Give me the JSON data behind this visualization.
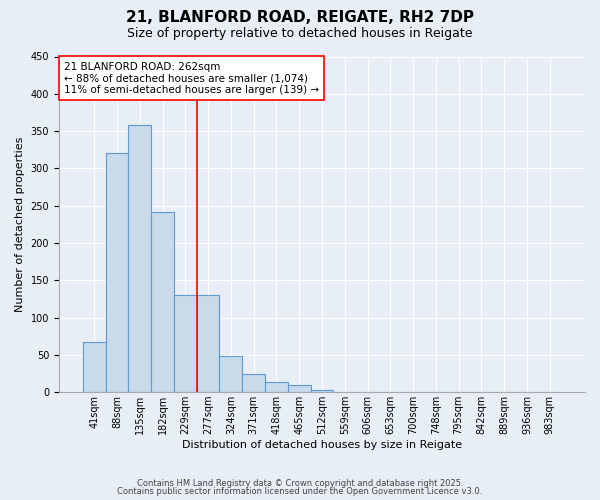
{
  "title": "21, BLANFORD ROAD, REIGATE, RH2 7DP",
  "subtitle": "Size of property relative to detached houses in Reigate",
  "xlabel": "Distribution of detached houses by size in Reigate",
  "ylabel": "Number of detached properties",
  "bar_labels": [
    "41sqm",
    "88sqm",
    "135sqm",
    "182sqm",
    "229sqm",
    "277sqm",
    "324sqm",
    "371sqm",
    "418sqm",
    "465sqm",
    "512sqm",
    "559sqm",
    "606sqm",
    "653sqm",
    "700sqm",
    "748sqm",
    "795sqm",
    "842sqm",
    "889sqm",
    "936sqm",
    "983sqm"
  ],
  "bar_heights": [
    67,
    320,
    358,
    241,
    130,
    130,
    49,
    25,
    14,
    10,
    3,
    0,
    0,
    0,
    0,
    0,
    0,
    0,
    0,
    0,
    0
  ],
  "bar_color": "#c9daea",
  "bar_edge_color": "#5b9bd5",
  "vline_x_index": 5,
  "vline_color": "red",
  "annotation_text": "21 BLANFORD ROAD: 262sqm\n← 88% of detached houses are smaller (1,074)\n11% of semi-detached houses are larger (139) →",
  "annotation_box_color": "white",
  "annotation_box_edge_color": "red",
  "ylim": [
    0,
    450
  ],
  "yticks": [
    0,
    50,
    100,
    150,
    200,
    250,
    300,
    350,
    400,
    450
  ],
  "bg_color": "#e8eef6",
  "plot_bg_color": "#e8eef6",
  "footer_line1": "Contains HM Land Registry data © Crown copyright and database right 2025.",
  "footer_line2": "Contains public sector information licensed under the Open Government Licence v3.0.",
  "title_fontsize": 11,
  "subtitle_fontsize": 9,
  "xlabel_fontsize": 8,
  "ylabel_fontsize": 8,
  "tick_fontsize": 7,
  "footer_fontsize": 6,
  "annotation_fontsize": 7.5
}
